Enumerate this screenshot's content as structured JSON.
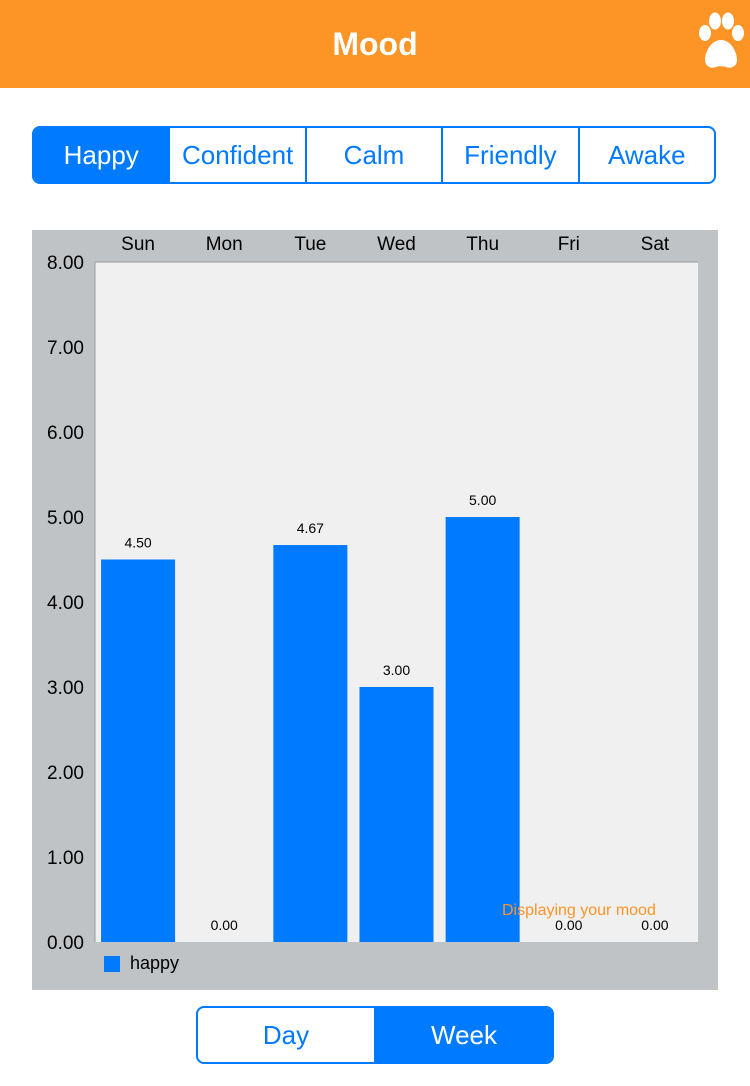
{
  "header": {
    "title": "Mood",
    "icon": "paw-icon",
    "background_color": "#FD9426"
  },
  "mood_tabs": {
    "items": [
      "Happy",
      "Confident",
      "Calm",
      "Friendly",
      "Awake"
    ],
    "selected": "Happy"
  },
  "chart": {
    "watermark": "Displaying your mood",
    "legend_label": "happy"
  },
  "chart_data": {
    "type": "bar",
    "categories": [
      "Sun",
      "Mon",
      "Tue",
      "Wed",
      "Thu",
      "Fri",
      "Sat"
    ],
    "series": [
      {
        "name": "happy",
        "values": [
          4.5,
          0,
          4.67,
          3,
          5,
          0,
          0
        ],
        "color": "#007AFF"
      }
    ],
    "value_labels": [
      "4.50",
      "0.00",
      "4.67",
      "3.00",
      "5.00",
      "0.00",
      "0.00"
    ],
    "y_ticks": [
      "0.00",
      "1.00",
      "2.00",
      "3.00",
      "4.00",
      "5.00",
      "6.00",
      "7.00",
      "8.00"
    ],
    "ylim": [
      0,
      8
    ],
    "x_axis_position": "top",
    "legend_position": "bottom-left",
    "grid": false
  },
  "range_tabs": {
    "items": [
      "Day",
      "Week"
    ],
    "selected": "Week"
  },
  "colors": {
    "accent": "#007AFF",
    "brand": "#FD9426",
    "chart_panel": "#BFC3C6",
    "plot_area": "#F0F0F0"
  }
}
